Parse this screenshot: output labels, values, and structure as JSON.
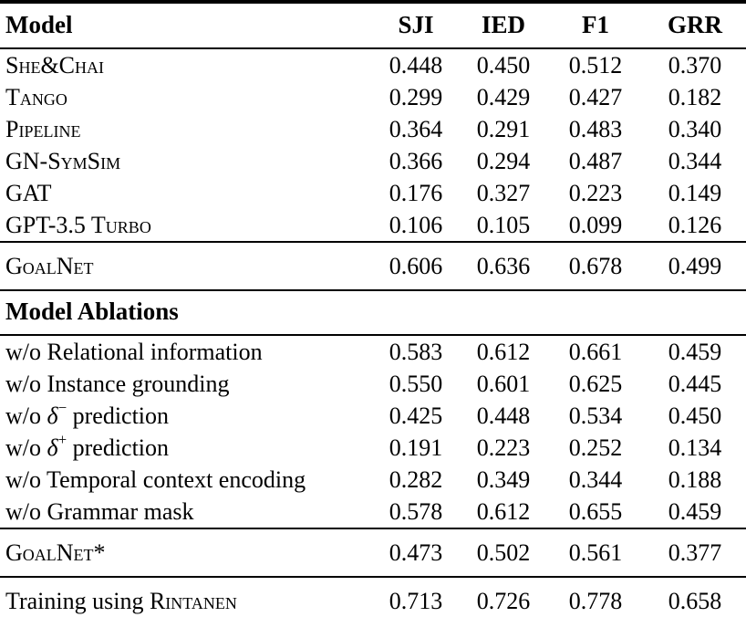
{
  "table": {
    "columns": [
      "Model",
      "SJI",
      "IED",
      "F1",
      "GRR"
    ],
    "sections": [
      {
        "rows": [
          {
            "label": [
              [
                "She&Chai",
                "sc"
              ]
            ],
            "values": [
              "0.448",
              "0.450",
              "0.512",
              "0.370"
            ]
          },
          {
            "label": [
              [
                "Tango",
                "sc"
              ]
            ],
            "values": [
              "0.299",
              "0.429",
              "0.427",
              "0.182"
            ]
          },
          {
            "label": [
              [
                "Pipeline",
                "sc"
              ]
            ],
            "values": [
              "0.364",
              "0.291",
              "0.483",
              "0.340"
            ]
          },
          {
            "label": [
              [
                "GN-SymSim",
                "sc"
              ]
            ],
            "values": [
              "0.366",
              "0.294",
              "0.487",
              "0.344"
            ]
          },
          {
            "label": [
              [
                "GAT",
                "sc"
              ]
            ],
            "values": [
              "0.176",
              "0.327",
              "0.223",
              "0.149"
            ]
          },
          {
            "label": [
              [
                "GPT-3.5 Turbo",
                "sc"
              ]
            ],
            "values": [
              "0.106",
              "0.105",
              "0.099",
              "0.126"
            ]
          }
        ]
      },
      {
        "rows": [
          {
            "label": [
              [
                "GoalNet",
                "sc"
              ]
            ],
            "values": [
              "0.606",
              "0.636",
              "0.678",
              "0.499"
            ]
          }
        ]
      },
      {
        "heading": "Model Ablations"
      },
      {
        "rows": [
          {
            "label": [
              [
                "w/o Relational information",
                "plain"
              ]
            ],
            "values": [
              "0.583",
              "0.612",
              "0.661",
              "0.459"
            ]
          },
          {
            "label": [
              [
                "w/o Instance grounding",
                "plain"
              ]
            ],
            "values": [
              "0.550",
              "0.601",
              "0.625",
              "0.445"
            ]
          },
          {
            "label": [
              [
                "w/o ",
                "plain"
              ],
              [
                "δ",
                "it"
              ],
              [
                "−",
                "sup"
              ],
              [
                " prediction",
                "plain"
              ]
            ],
            "values": [
              "0.425",
              "0.448",
              "0.534",
              "0.450"
            ]
          },
          {
            "label": [
              [
                "w/o ",
                "plain"
              ],
              [
                "δ",
                "it"
              ],
              [
                "+",
                "sup"
              ],
              [
                " prediction",
                "plain"
              ]
            ],
            "values": [
              "0.191",
              "0.223",
              "0.252",
              "0.134"
            ]
          },
          {
            "label": [
              [
                "w/o Temporal context encoding",
                "plain"
              ]
            ],
            "values": [
              "0.282",
              "0.349",
              "0.344",
              "0.188"
            ]
          },
          {
            "label": [
              [
                "w/o Grammar mask",
                "plain"
              ]
            ],
            "values": [
              "0.578",
              "0.612",
              "0.655",
              "0.459"
            ]
          }
        ]
      },
      {
        "rows": [
          {
            "label": [
              [
                "GoalNet*",
                "sc"
              ]
            ],
            "values": [
              "0.473",
              "0.502",
              "0.561",
              "0.377"
            ]
          }
        ]
      },
      {
        "rows": [
          {
            "label": [
              [
                "Training using ",
                "plain"
              ],
              [
                "Rintanen",
                "sc"
              ]
            ],
            "values": [
              "0.713",
              "0.726",
              "0.778",
              "0.658"
            ]
          }
        ]
      }
    ]
  }
}
